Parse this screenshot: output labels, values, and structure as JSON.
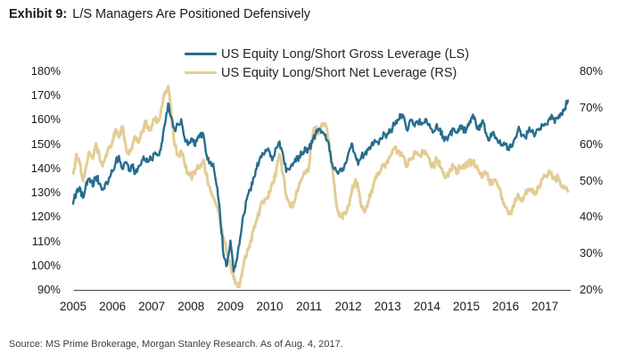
{
  "header": {
    "exhibit_label": "Exhibit 9:",
    "title_text": "L/S Managers Are Positioned Defensively"
  },
  "footer": {
    "source": "Source: MS Prime Brokerage, Morgan Stanley Research. As of Aug. 4, 2017."
  },
  "colors": {
    "gross_line": "#266d8e",
    "net_line": "#e3cd95",
    "axis_line": "#4a4a4a",
    "text": "#1a1a1a"
  },
  "chart_data": {
    "type": "line",
    "title": "Exhibit 9: L/S Managers Are Positioned Defensively",
    "x_start_year": 2005,
    "x_points_per_year": 12,
    "x_ticks": [
      "2005",
      "2006",
      "2007",
      "2008",
      "2009",
      "2010",
      "2011",
      "2012",
      "2013",
      "2014",
      "2015",
      "2016",
      "2017"
    ],
    "left_axis": {
      "min": 90,
      "max": 180,
      "ticks": [
        "180%",
        "170%",
        "160%",
        "150%",
        "140%",
        "130%",
        "120%",
        "110%",
        "100%",
        "90%"
      ]
    },
    "right_axis": {
      "min": 20,
      "max": 80,
      "ticks": [
        "80%",
        "70%",
        "60%",
        "50%",
        "40%",
        "30%",
        "20%"
      ]
    },
    "grid": "off",
    "legend_position": "top-center",
    "series": [
      {
        "name": "US Equity Long/Short Gross Leverage (LS)",
        "axis": "left",
        "color": "#266d8e",
        "values": [
          126,
          130,
          132,
          128,
          134,
          136,
          133,
          137,
          134,
          131,
          134,
          136,
          139,
          143,
          145,
          140,
          143,
          139,
          141,
          138,
          141,
          143,
          144,
          143,
          144,
          147,
          145,
          150,
          158,
          167,
          161,
          156,
          158,
          160,
          153,
          150,
          152,
          150,
          153,
          155,
          152,
          144,
          143,
          140,
          132,
          118,
          104,
          100,
          110,
          98,
          102,
          112,
          121,
          127,
          131,
          136,
          140,
          144,
          146,
          147,
          147,
          144,
          149,
          151,
          146,
          139,
          140,
          141,
          143,
          145,
          147,
          148,
          148,
          151,
          154,
          156,
          155,
          154,
          150,
          142,
          140,
          138,
          139,
          142,
          146,
          150,
          146,
          142,
          145,
          146,
          148,
          150,
          152,
          151,
          152,
          154,
          154,
          156,
          158,
          160,
          162,
          161,
          156,
          160,
          158,
          160,
          159,
          159,
          159,
          157,
          155,
          158,
          156,
          153,
          152,
          154,
          156,
          155,
          157,
          156,
          156,
          159,
          162,
          158,
          156,
          160,
          155,
          152,
          155,
          153,
          151,
          150,
          150,
          148,
          149,
          153,
          157,
          154,
          153,
          156,
          155,
          154,
          156,
          158,
          158,
          160,
          162,
          159,
          161,
          163,
          165,
          168
        ]
      },
      {
        "name": "US Equity Long/Short Net Leverage (RS)",
        "axis": "right",
        "color": "#e3cd95",
        "values": [
          52,
          57,
          55,
          50,
          54,
          58,
          56,
          60,
          57,
          54,
          57,
          59,
          61,
          64,
          62,
          65,
          60,
          57,
          59,
          62,
          60,
          63,
          66,
          64,
          65,
          67,
          66,
          70,
          74,
          76,
          68,
          60,
          57,
          58,
          55,
          52,
          51,
          52,
          54,
          54,
          55,
          50,
          47,
          45,
          43,
          38,
          34,
          30,
          27,
          23,
          21,
          22,
          27,
          30,
          33,
          36,
          39,
          42,
          44,
          45,
          47,
          49,
          53,
          57,
          52,
          46,
          44,
          43,
          46,
          49,
          51,
          52,
          54,
          62,
          65,
          63,
          66,
          66,
          61,
          54,
          46,
          41,
          40,
          41,
          43,
          47,
          50,
          48,
          43,
          41,
          44,
          47,
          50,
          52,
          53,
          54,
          55,
          57,
          59,
          58,
          57,
          56,
          54,
          56,
          57,
          58,
          57,
          58,
          57,
          55,
          54,
          56,
          54,
          52,
          51,
          53,
          54,
          52,
          54,
          54,
          54,
          55,
          55,
          54,
          52,
          51,
          52,
          50,
          49,
          50,
          48,
          45,
          43,
          41,
          42,
          45,
          46,
          45,
          46,
          48,
          47,
          46,
          48,
          50,
          51,
          52,
          52,
          50,
          51,
          49,
          48,
          47
        ]
      }
    ]
  }
}
